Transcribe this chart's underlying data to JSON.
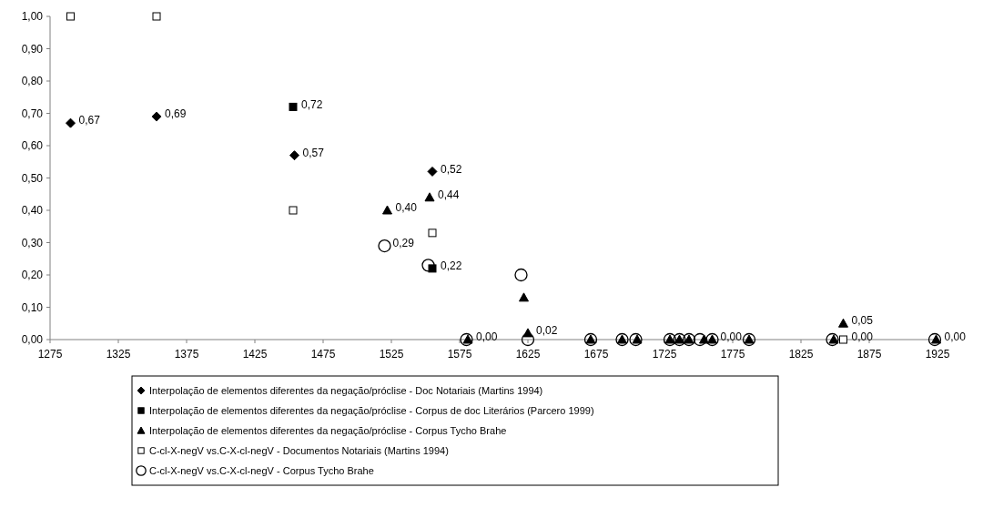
{
  "chart_data": {
    "type": "scatter",
    "xlim": [
      1275,
      1925
    ],
    "xticks": [
      1275,
      1325,
      1375,
      1425,
      1475,
      1525,
      1575,
      1625,
      1675,
      1725,
      1775,
      1825,
      1875,
      1925
    ],
    "ylim": [
      0,
      1
    ],
    "yticks": [
      {
        "value": 0,
        "label": "0,00"
      },
      {
        "value": 0.1,
        "label": "0,10"
      },
      {
        "value": 0.2,
        "label": "0,20"
      },
      {
        "value": 0.3,
        "label": "0,30"
      },
      {
        "value": 0.4,
        "label": "0,40"
      },
      {
        "value": 0.5,
        "label": "0,50"
      },
      {
        "value": 0.6,
        "label": "0,60"
      },
      {
        "value": 0.7,
        "label": "0,70"
      },
      {
        "value": 0.8,
        "label": "0,80"
      },
      {
        "value": 0.9,
        "label": "0,90"
      },
      {
        "value": 1,
        "label": "1,00"
      }
    ],
    "grid": false,
    "legend": "bottom",
    "series": [
      {
        "name": "Interpolação de elementos diferentes da negação/próclise - Doc Notariais (Martins 1994)",
        "color": "#000000",
        "marker": "diamond",
        "x": [
          1290,
          1353,
          1454,
          1555
        ],
        "values": [
          0.67,
          0.69,
          0.57,
          0.52
        ],
        "value_labels": [
          "0,67",
          "0,69",
          "0,57",
          "0,52"
        ]
      },
      {
        "name": "Interpolação de elementos diferentes da negação/próclise - Corpus de doc Literários (Parcero 1999)",
        "color": "#000000",
        "marker": "square",
        "x": [
          1453,
          1555
        ],
        "values": [
          0.72,
          0.22
        ],
        "value_labels": [
          "0,72",
          "0,22"
        ]
      },
      {
        "name": "Interpolação de elementos diferentes da negação/próclise - Corpus Tycho Brahe",
        "color": "#000000",
        "marker": "triangle",
        "x": [
          1522,
          1553,
          1581,
          1622,
          1625,
          1671,
          1694,
          1705,
          1729,
          1736,
          1743,
          1754,
          1760,
          1787,
          1849,
          1856,
          1924
        ],
        "values": [
          0.4,
          0.44,
          0,
          0.13,
          0.02,
          0,
          0,
          0,
          0,
          0,
          0,
          0,
          0,
          0,
          0,
          0.05,
          0
        ],
        "value_labels": [
          "0,40",
          "0,44",
          "0,00",
          null,
          "0,02",
          null,
          null,
          null,
          null,
          null,
          null,
          null,
          "0,00",
          null,
          null,
          "0,05",
          "0,00"
        ]
      },
      {
        "name": "C-cl-X-negV vs.C-X-cl-negV - Documentos Notariais (Martins 1994)",
        "color": "#ffffff",
        "marker": "square",
        "x": [
          1290,
          1353,
          1453,
          1555,
          1856
        ],
        "values": [
          1,
          1,
          0.4,
          0.33,
          0
        ],
        "value_labels": [
          null,
          null,
          null,
          null,
          "0,00"
        ]
      },
      {
        "name": "C-cl-X-negV vs.C-X-cl-negV - Corpus Tycho Brahe",
        "color": "#000000",
        "marker": "circle",
        "x": [
          1520,
          1552,
          1580,
          1620,
          1625,
          1671,
          1694,
          1704,
          1729,
          1736,
          1743,
          1751,
          1760,
          1787,
          1848,
          1923
        ],
        "values": [
          0.29,
          0.23,
          0,
          0.2,
          0,
          0,
          0,
          0,
          0,
          0,
          0,
          0,
          0,
          0,
          0,
          0
        ],
        "value_labels": [
          "0,29",
          null,
          null,
          null,
          null,
          null,
          null,
          null,
          null,
          null,
          null,
          null,
          null,
          null,
          null,
          null
        ]
      }
    ]
  }
}
